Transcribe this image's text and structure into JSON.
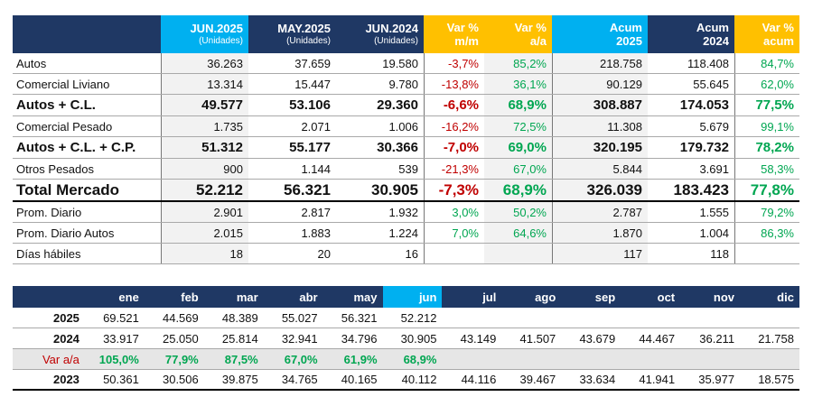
{
  "main_table": {
    "headers": [
      {
        "top": "",
        "sub": ""
      },
      {
        "top": "JUN.2025",
        "sub": "(Unidades)"
      },
      {
        "top": "MAY.2025",
        "sub": "(Unidades)"
      },
      {
        "top": "JUN.2024",
        "sub": "(Unidades)"
      },
      {
        "top": "Var %",
        "sub": "m/m"
      },
      {
        "top": "Var %",
        "sub": "a/a"
      },
      {
        "top": "Acum",
        "sub": "2025"
      },
      {
        "top": "Acum",
        "sub": "2024"
      },
      {
        "top": "Var %",
        "sub": "acum"
      }
    ],
    "rows": [
      {
        "label": "Autos",
        "jun2025": "36.263",
        "may2025": "37.659",
        "jun2024": "19.580",
        "var_mm": "-3,7%",
        "var_aa": "85,2%",
        "acum2025": "218.758",
        "acum2024": "118.408",
        "var_acum": "84,7%"
      },
      {
        "label": "Comercial Liviano",
        "jun2025": "13.314",
        "may2025": "15.447",
        "jun2024": "9.780",
        "var_mm": "-13,8%",
        "var_aa": "36,1%",
        "acum2025": "90.129",
        "acum2024": "55.645",
        "var_acum": "62,0%"
      },
      {
        "label": "Autos + C.L.",
        "jun2025": "49.577",
        "may2025": "53.106",
        "jun2024": "29.360",
        "var_mm": "-6,6%",
        "var_aa": "68,9%",
        "acum2025": "308.887",
        "acum2024": "174.053",
        "var_acum": "77,5%"
      },
      {
        "label": "Comercial Pesado",
        "jun2025": "1.735",
        "may2025": "2.071",
        "jun2024": "1.006",
        "var_mm": "-16,2%",
        "var_aa": "72,5%",
        "acum2025": "11.308",
        "acum2024": "5.679",
        "var_acum": "99,1%"
      },
      {
        "label": "Autos + C.L. + C.P.",
        "jun2025": "51.312",
        "may2025": "55.177",
        "jun2024": "30.366",
        "var_mm": "-7,0%",
        "var_aa": "69,0%",
        "acum2025": "320.195",
        "acum2024": "179.732",
        "var_acum": "78,2%"
      },
      {
        "label": "Otros Pesados",
        "jun2025": "900",
        "may2025": "1.144",
        "jun2024": "539",
        "var_mm": "-21,3%",
        "var_aa": "67,0%",
        "acum2025": "5.844",
        "acum2024": "3.691",
        "var_acum": "58,3%"
      },
      {
        "label": "Total Mercado",
        "jun2025": "52.212",
        "may2025": "56.321",
        "jun2024": "30.905",
        "var_mm": "-7,3%",
        "var_aa": "68,9%",
        "acum2025": "326.039",
        "acum2024": "183.423",
        "var_acum": "77,8%"
      },
      {
        "label": "Prom. Diario",
        "jun2025": "2.901",
        "may2025": "2.817",
        "jun2024": "1.932",
        "var_mm": "3,0%",
        "var_aa": "50,2%",
        "acum2025": "2.787",
        "acum2024": "1.555",
        "var_acum": "79,2%"
      },
      {
        "label": "Prom. Diario Autos",
        "jun2025": "2.015",
        "may2025": "1.883",
        "jun2024": "1.224",
        "var_mm": "7,0%",
        "var_aa": "64,6%",
        "acum2025": "1.870",
        "acum2024": "1.004",
        "var_acum": "86,3%"
      },
      {
        "label": "Días hábiles",
        "jun2025": "18",
        "may2025": "20",
        "jun2024": "16",
        "var_mm": "",
        "var_aa": "",
        "acum2025": "117",
        "acum2024": "118",
        "var_acum": ""
      }
    ]
  },
  "monthly_table": {
    "months": [
      "ene",
      "feb",
      "mar",
      "abr",
      "may",
      "jun",
      "jul",
      "ago",
      "sep",
      "oct",
      "nov",
      "dic"
    ],
    "rows": [
      {
        "year": "2025",
        "values": [
          "69.521",
          "44.569",
          "48.389",
          "55.027",
          "56.321",
          "52.212",
          "",
          "",
          "",
          "",
          "",
          ""
        ]
      },
      {
        "year": "2024",
        "values": [
          "33.917",
          "25.050",
          "25.814",
          "32.941",
          "34.796",
          "30.905",
          "43.149",
          "41.507",
          "43.679",
          "44.467",
          "36.211",
          "21.758"
        ]
      },
      {
        "year": "Var a/a",
        "values": [
          "105,0%",
          "77,9%",
          "87,5%",
          "67,0%",
          "61,9%",
          "68,9%",
          "",
          "",
          "",
          "",
          "",
          ""
        ]
      },
      {
        "year": "2023",
        "values": [
          "50.361",
          "30.506",
          "39.875",
          "34.765",
          "40.165",
          "40.112",
          "44.116",
          "39.467",
          "33.634",
          "41.941",
          "35.977",
          "18.575"
        ]
      }
    ]
  },
  "colors": {
    "navy": "#1f3864",
    "cyan": "#00b0f0",
    "orange": "#ffc000",
    "negative": "#c00000",
    "positive": "#00a651"
  }
}
